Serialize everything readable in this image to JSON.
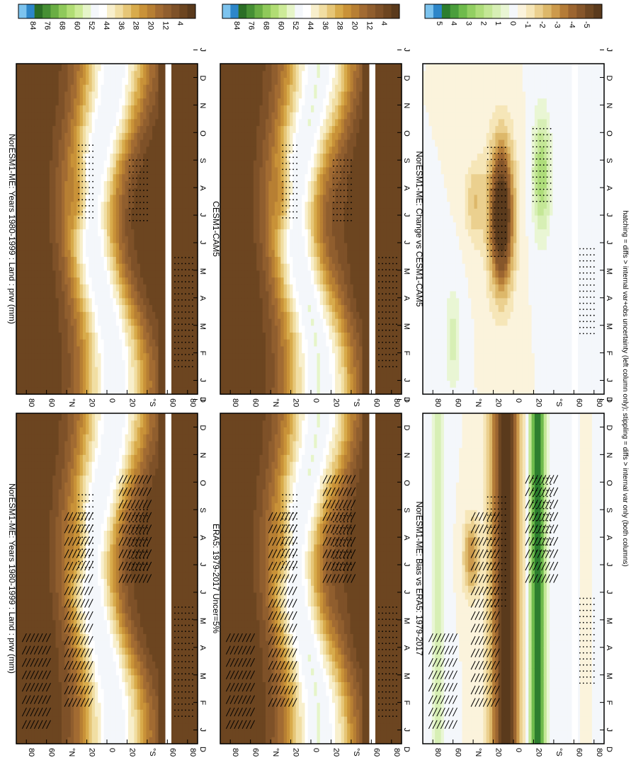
{
  "footnote": "hatching = diffs > internal var+obs uncertainty (left column only); stippling = diffs > internal var only (both columns)",
  "palettes": {
    "prw": [
      "#5a3a1c",
      "#6c4520",
      "#7e5128",
      "#905e2e",
      "#a26b32",
      "#b77f33",
      "#c99238",
      "#d8ab4b",
      "#e6c677",
      "#f1dea3",
      "#f8efcc",
      "#ffffff",
      "#f4f7fb",
      "#e6f5c9",
      "#cdeb98",
      "#b1dd74",
      "#8fc95a",
      "#6aae44",
      "#468f34",
      "#2b6e26",
      "#2d86c9",
      "#7cc3ee"
    ],
    "diff": [
      "#5a3a1c",
      "#6e4722",
      "#86562a",
      "#9c6530",
      "#b47c38",
      "#cc9a4c",
      "#ddb86a",
      "#ebd08f",
      "#f6e6b8",
      "#fbf3dc",
      "#f4f7fb",
      "#e9f6d4",
      "#d7efb5",
      "#c4e796",
      "#aedd7a",
      "#92cf62",
      "#6fbb4c",
      "#4a9e3c",
      "#2d7e2e",
      "#2d86c9",
      "#7cc3ee"
    ]
  },
  "axes_labels": {
    "lat_ticks": [
      "80",
      "60",
      "°N",
      "20",
      "0",
      "20",
      "°S",
      "60",
      "80"
    ],
    "month_ticks": [
      "J",
      "F",
      "M",
      "A",
      "M",
      "J",
      "J",
      "A",
      "S",
      "O",
      "N",
      "D",
      "J"
    ],
    "month_start": "D"
  },
  "chart_data": [
    {
      "type": "heatmap",
      "panel": "top-left",
      "title": "NorESM1-ME: Years 1980-1999 : Land : prw (mm)",
      "variable": "prw",
      "units": "mm",
      "x": "month",
      "y": "latitude",
      "colorbar": "prw",
      "colorbar_labels": [
        "84",
        "76",
        "68",
        "60",
        "52",
        "44",
        "36",
        "28",
        "20",
        "12",
        "4"
      ],
      "hatching": true,
      "stippling": true
    },
    {
      "type": "heatmap",
      "panel": "top-right",
      "title": "NorESM1-ME: Years 1980-1999 : Land : prw (mm)",
      "variable": "prw",
      "units": "mm",
      "colorbar": "prw",
      "colorbar_labels": [
        "84",
        "76",
        "68",
        "60",
        "52",
        "44",
        "36",
        "28",
        "20",
        "12",
        "4"
      ],
      "hatching": false,
      "stippling": true
    },
    {
      "type": "heatmap",
      "panel": "middle-left",
      "title": "ERA5: 1979-2017 Uncer=5%",
      "variable": "prw",
      "colorbar": "prw",
      "colorbar_labels": [
        "84",
        "76",
        "68",
        "60",
        "52",
        "44",
        "36",
        "28",
        "20",
        "12",
        "4"
      ],
      "hatching": true,
      "stippling": true
    },
    {
      "type": "heatmap",
      "panel": "middle-right",
      "title": "CESM1-CAM5",
      "variable": "prw",
      "colorbar": "prw",
      "colorbar_labels": [
        "84",
        "76",
        "68",
        "60",
        "52",
        "44",
        "36",
        "28",
        "20",
        "12",
        "4"
      ],
      "hatching": false,
      "stippling": true
    },
    {
      "type": "heatmap",
      "panel": "bottom-left",
      "title": "NorESM1-ME: Bias vs ERA5: 1979-2017",
      "variable": "prw difference",
      "colorbar": "diff",
      "colorbar_labels": [
        "5",
        "4",
        "3",
        "2",
        "1",
        "0",
        "-1",
        "-2",
        "-3",
        "-4",
        "-5"
      ],
      "hatching": true,
      "stippling": true
    },
    {
      "type": "heatmap",
      "panel": "bottom-right",
      "title": "NorESM1-ME: Change vs CESM1-CAM5",
      "variable": "prw difference",
      "colorbar": "diff",
      "colorbar_labels": [
        "5",
        "4",
        "3",
        "2",
        "1",
        "0",
        "-1",
        "-2",
        "-3",
        "-4",
        "-5"
      ],
      "hatching": false,
      "stippling": true
    }
  ]
}
